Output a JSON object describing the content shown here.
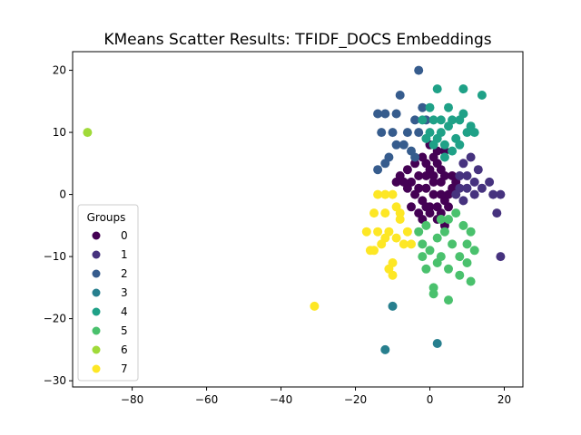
{
  "chart_data": {
    "type": "scatter",
    "title": "KMeans Scatter Results: TFIDF_DOCS Embeddings",
    "xlabel": "",
    "ylabel": "",
    "xlim": [
      -96,
      25
    ],
    "ylim": [
      -31,
      23
    ],
    "x_ticks": [
      -80,
      -60,
      -40,
      -20,
      0,
      20
    ],
    "y_ticks": [
      -30,
      -20,
      -10,
      0,
      10,
      20
    ],
    "grid": false,
    "legend": {
      "title": "Groups",
      "placement": "lower-left"
    },
    "series": [
      {
        "name": "0",
        "color": "#440154",
        "points": [
          [
            -2,
            6
          ],
          [
            -1,
            5
          ],
          [
            0,
            4
          ],
          [
            1,
            6
          ],
          [
            2,
            5
          ],
          [
            3,
            4
          ],
          [
            4,
            3
          ],
          [
            -3,
            3
          ],
          [
            -5,
            2
          ],
          [
            -6,
            1
          ],
          [
            -4,
            0
          ],
          [
            -2,
            -1
          ],
          [
            0,
            -2
          ],
          [
            2,
            -2
          ],
          [
            4,
            -1
          ],
          [
            5,
            0
          ],
          [
            6,
            1
          ],
          [
            3,
            2
          ],
          [
            1,
            2
          ],
          [
            -1,
            1
          ],
          [
            -3,
            -3
          ],
          [
            -2,
            -4
          ],
          [
            0,
            -3
          ],
          [
            2,
            -4
          ],
          [
            4,
            -5
          ],
          [
            -7,
            2
          ],
          [
            -6,
            4
          ],
          [
            -4,
            5
          ],
          [
            0,
            8
          ],
          [
            2,
            7
          ],
          [
            4,
            7
          ],
          [
            1,
            0
          ],
          [
            -1,
            -2
          ],
          [
            3,
            -3
          ],
          [
            5,
            -2
          ],
          [
            -8,
            3
          ],
          [
            6,
            3
          ],
          [
            -9,
            2
          ],
          [
            -5,
            -2
          ],
          [
            7,
            2
          ],
          [
            -1,
            3
          ],
          [
            1,
            3
          ],
          [
            3,
            0
          ],
          [
            -3,
            1
          ]
        ]
      },
      {
        "name": "1",
        "color": "#46327e",
        "points": [
          [
            17,
            0
          ],
          [
            19,
            0
          ],
          [
            16,
            2
          ],
          [
            18,
            -3
          ],
          [
            19,
            -10
          ],
          [
            12,
            2
          ],
          [
            11,
            6
          ],
          [
            13,
            4
          ],
          [
            14,
            1
          ],
          [
            10,
            3
          ],
          [
            9,
            5
          ],
          [
            8,
            1
          ],
          [
            9,
            -1
          ],
          [
            7,
            0
          ],
          [
            10,
            1
          ],
          [
            8,
            3
          ],
          [
            12,
            0
          ]
        ]
      },
      {
        "name": "2",
        "color": "#365c8d",
        "points": [
          [
            -12,
            13
          ],
          [
            -14,
            13
          ],
          [
            -9,
            13
          ],
          [
            -8,
            16
          ],
          [
            -4,
            12
          ],
          [
            -2,
            14
          ],
          [
            -10,
            10
          ],
          [
            -7,
            8
          ],
          [
            -5,
            7
          ],
          [
            -13,
            10
          ],
          [
            -11,
            6
          ],
          [
            -14,
            4
          ],
          [
            -6,
            10
          ],
          [
            -3,
            10
          ],
          [
            -1,
            12
          ],
          [
            -9,
            8
          ],
          [
            -4,
            6
          ],
          [
            -12,
            5
          ],
          [
            -3,
            20
          ]
        ]
      },
      {
        "name": "3",
        "color": "#277f8e",
        "points": [
          [
            -12,
            -25
          ],
          [
            2,
            -24
          ],
          [
            -10,
            -18
          ]
        ]
      },
      {
        "name": "4",
        "color": "#1fa187",
        "points": [
          [
            9,
            17
          ],
          [
            14,
            16
          ],
          [
            2,
            17
          ],
          [
            5,
            14
          ],
          [
            3,
            12
          ],
          [
            1,
            12
          ],
          [
            0,
            10
          ],
          [
            2,
            9
          ],
          [
            4,
            8
          ],
          [
            6,
            7
          ],
          [
            7,
            9
          ],
          [
            8,
            8
          ],
          [
            10,
            10
          ],
          [
            11,
            11
          ],
          [
            12,
            10
          ],
          [
            3,
            10
          ],
          [
            5,
            11
          ],
          [
            0,
            14
          ],
          [
            -2,
            12
          ],
          [
            6,
            12
          ],
          [
            9,
            13
          ],
          [
            4,
            6
          ],
          [
            1,
            8
          ],
          [
            -1,
            9
          ],
          [
            8,
            12
          ]
        ]
      },
      {
        "name": "5",
        "color": "#4ac16d",
        "points": [
          [
            10,
            -8
          ],
          [
            11,
            -6
          ],
          [
            12,
            -9
          ],
          [
            8,
            -10
          ],
          [
            10,
            -11
          ],
          [
            6,
            -8
          ],
          [
            4,
            -6
          ],
          [
            3,
            -4
          ],
          [
            5,
            -4
          ],
          [
            7,
            -3
          ],
          [
            2,
            -7
          ],
          [
            0,
            -9
          ],
          [
            -1,
            -12
          ],
          [
            -2,
            -10
          ],
          [
            2,
            -11
          ],
          [
            5,
            -12
          ],
          [
            3,
            -10
          ],
          [
            1,
            -15
          ],
          [
            1,
            -16
          ],
          [
            5,
            -17
          ],
          [
            11,
            -14
          ],
          [
            8,
            -13
          ],
          [
            9,
            -5
          ],
          [
            -2,
            -8
          ],
          [
            -3,
            -6
          ],
          [
            -1,
            -5
          ]
        ]
      },
      {
        "name": "6",
        "color": "#a0da39",
        "points": [
          [
            -92,
            10
          ]
        ]
      },
      {
        "name": "7",
        "color": "#fde725",
        "points": [
          [
            -10,
            -13
          ],
          [
            -12,
            -7
          ],
          [
            -11,
            -6
          ],
          [
            -14,
            -6
          ],
          [
            -16,
            -9
          ],
          [
            -17,
            -6
          ],
          [
            -15,
            -3
          ],
          [
            -12,
            -3
          ],
          [
            -14,
            0
          ],
          [
            -12,
            0
          ],
          [
            -10,
            0
          ],
          [
            -9,
            -2
          ],
          [
            -8,
            -4
          ],
          [
            -9,
            -7
          ],
          [
            -7,
            -8
          ],
          [
            -6,
            -6
          ],
          [
            -5,
            -8
          ],
          [
            -8,
            -3
          ],
          [
            -13,
            -8
          ],
          [
            -11,
            -12
          ],
          [
            -10,
            -11
          ],
          [
            -31,
            -18
          ],
          [
            -15,
            -9
          ]
        ]
      }
    ]
  }
}
